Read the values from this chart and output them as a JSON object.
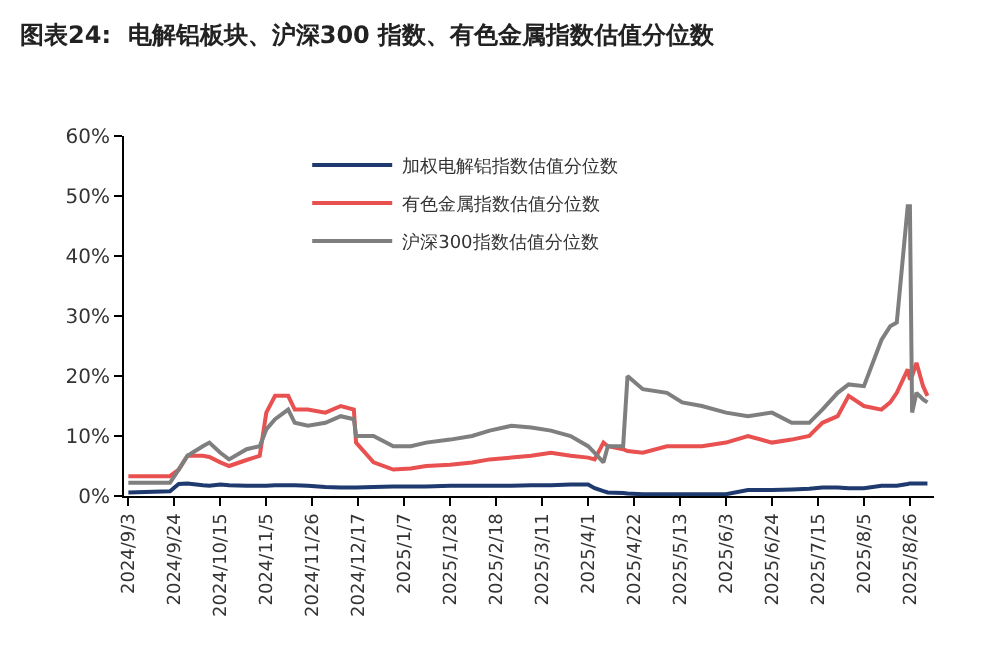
{
  "chart_data": {
    "type": "line",
    "title": "图表24:  电解铝板块、沪深300 指数、有色金属指数估值分位数",
    "x": [
      "2024-09-03",
      "2024-09-22",
      "2024-09-26",
      "2024-09-30",
      "2024-10-07",
      "2024-10-10",
      "2024-10-15",
      "2024-10-19",
      "2024-10-27",
      "2024-11-02",
      "2024-11-05",
      "2024-11-09",
      "2024-11-15",
      "2024-11-18",
      "2024-11-24",
      "2024-12-02",
      "2024-12-09",
      "2024-12-15",
      "2024-12-16",
      "2024-12-24",
      "2025-01-02",
      "2025-01-10",
      "2025-01-17",
      "2025-01-28",
      "2025-02-07",
      "2025-02-15",
      "2025-02-25",
      "2025-03-06",
      "2025-03-15",
      "2025-03-24",
      "2025-04-01",
      "2025-04-04",
      "2025-04-08",
      "2025-04-10",
      "2025-04-17",
      "2025-04-19",
      "2025-04-26",
      "2025-05-07",
      "2025-05-14",
      "2025-05-23",
      "2025-06-03",
      "2025-06-13",
      "2025-06-24",
      "2025-07-03",
      "2025-07-11",
      "2025-07-17",
      "2025-07-24",
      "2025-07-29",
      "2025-08-05",
      "2025-08-13",
      "2025-08-17",
      "2025-08-20",
      "2025-08-25",
      "2025-08-26",
      "2025-08-27",
      "2025-08-29",
      "2025-09-01",
      "2025-09-03"
    ],
    "series": [
      {
        "name": "加权电解铝指数估值分位数",
        "color": "#1f3a6e",
        "values": [
          0.6,
          0.8,
          2.0,
          2.1,
          1.8,
          1.7,
          1.9,
          1.8,
          1.7,
          1.7,
          1.7,
          1.8,
          1.8,
          1.8,
          1.7,
          1.5,
          1.4,
          1.4,
          1.4,
          1.5,
          1.6,
          1.6,
          1.6,
          1.7,
          1.7,
          1.7,
          1.7,
          1.8,
          1.8,
          1.9,
          1.9,
          1.3,
          0.8,
          0.6,
          0.5,
          0.4,
          0.3,
          0.3,
          0.3,
          0.3,
          0.3,
          1.0,
          1.0,
          1.1,
          1.2,
          1.4,
          1.4,
          1.3,
          1.3,
          1.7,
          1.7,
          1.7,
          2.0,
          2.1,
          2.1,
          2.1,
          2.1,
          2.1
        ]
      },
      {
        "name": "有色金属指数估值分位数",
        "color": "#e8514f",
        "values": [
          3.3,
          3.3,
          4.4,
          6.7,
          6.7,
          6.5,
          5.6,
          5.0,
          6.0,
          6.7,
          13.9,
          16.7,
          16.7,
          14.4,
          14.4,
          13.9,
          15.0,
          14.4,
          8.9,
          5.6,
          4.4,
          4.6,
          5.0,
          5.2,
          5.6,
          6.1,
          6.4,
          6.7,
          7.2,
          6.7,
          6.4,
          6.1,
          8.9,
          8.3,
          7.8,
          7.5,
          7.2,
          8.3,
          8.3,
          8.3,
          8.9,
          10.0,
          8.9,
          9.4,
          10.0,
          12.2,
          13.3,
          16.7,
          15.0,
          14.4,
          15.6,
          17.2,
          21.1,
          19.4,
          20.0,
          22.2,
          18.3,
          16.7
        ]
      },
      {
        "name": "沪深300指数估值分位数",
        "color": "#7f7f7f",
        "values": [
          2.2,
          2.2,
          4.4,
          6.7,
          8.3,
          8.9,
          7.2,
          6.1,
          7.8,
          8.3,
          11.1,
          12.8,
          14.4,
          12.2,
          11.7,
          12.2,
          13.3,
          12.8,
          10.0,
          10.0,
          8.3,
          8.3,
          8.9,
          9.4,
          10.0,
          10.9,
          11.7,
          11.4,
          10.9,
          10.0,
          8.3,
          7.2,
          5.6,
          8.3,
          8.3,
          20.0,
          17.8,
          17.2,
          15.6,
          15.0,
          13.9,
          13.3,
          13.9,
          12.2,
          12.2,
          14.4,
          17.2,
          18.6,
          18.3,
          26.0,
          28.3,
          28.9,
          48.3,
          48.3,
          13.9,
          17.2,
          16.1,
          15.6
        ]
      }
    ],
    "ylim": [
      0,
      60
    ],
    "yticks": [
      {
        "value": 0,
        "label": "0%"
      },
      {
        "value": 10,
        "label": "10%"
      },
      {
        "value": 20,
        "label": "20%"
      },
      {
        "value": 30,
        "label": "30%"
      },
      {
        "value": 40,
        "label": "40%"
      },
      {
        "value": 50,
        "label": "50%"
      },
      {
        "value": 60,
        "label": "60%"
      }
    ],
    "xlim": [
      "2024-09-01",
      "2025-09-06"
    ],
    "xticks": [
      {
        "value": "2024-09-03",
        "label": "2024/9/3"
      },
      {
        "value": "2024-09-24",
        "label": "2024/9/24"
      },
      {
        "value": "2024-10-15",
        "label": "2024/10/15"
      },
      {
        "value": "2024-11-05",
        "label": "2024/11/5"
      },
      {
        "value": "2024-11-26",
        "label": "2024/11/26"
      },
      {
        "value": "2024-12-17",
        "label": "2024/12/17"
      },
      {
        "value": "2025-01-07",
        "label": "2025/1/7"
      },
      {
        "value": "2025-01-28",
        "label": "2025/1/28"
      },
      {
        "value": "2025-02-18",
        "label": "2025/2/18"
      },
      {
        "value": "2025-03-11",
        "label": "2025/3/11"
      },
      {
        "value": "2025-04-01",
        "label": "2025/4/1"
      },
      {
        "value": "2025-04-22",
        "label": "2025/4/22"
      },
      {
        "value": "2025-05-13",
        "label": "2025/5/13"
      },
      {
        "value": "2025-06-03",
        "label": "2025/6/3"
      },
      {
        "value": "2025-06-24",
        "label": "2025/6/24"
      },
      {
        "value": "2025-07-15",
        "label": "2025/7/15"
      },
      {
        "value": "2025-08-05",
        "label": "2025/8/5"
      },
      {
        "value": "2025-08-26",
        "label": "2025/8/26"
      }
    ],
    "legend": "top",
    "marker": "none",
    "line_style": "solid"
  }
}
